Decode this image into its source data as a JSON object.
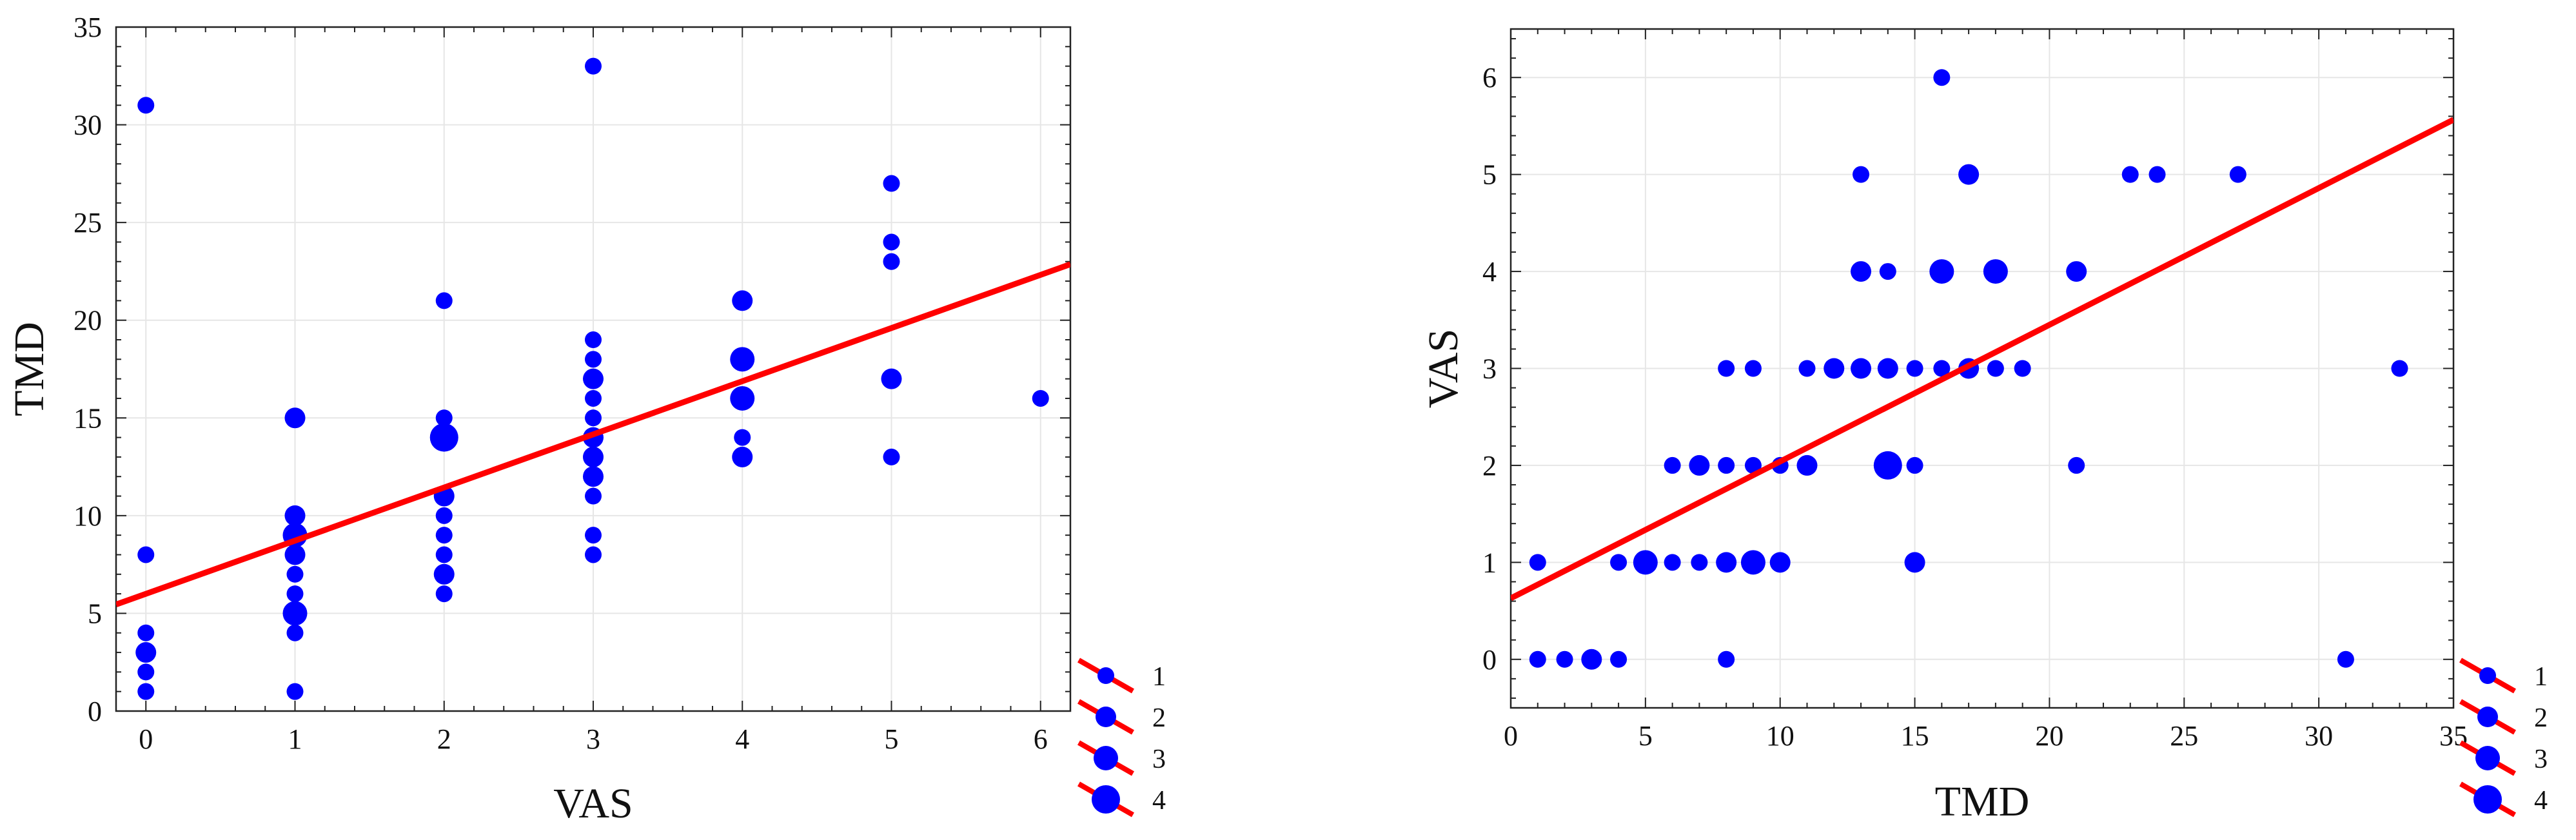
{
  "chart_data": [
    {
      "type": "scatter",
      "xlabel": "VAS",
      "ylabel": "TMD",
      "xlim": [
        -0.2,
        6.2
      ],
      "ylim": [
        0,
        35
      ],
      "xticks": [
        0,
        1,
        2,
        3,
        4,
        5,
        6
      ],
      "yticks": [
        0,
        5,
        10,
        15,
        20,
        25,
        30,
        35
      ],
      "grid": true,
      "point_color": "#0000ff",
      "line_color": "#ff0000",
      "fit_line": {
        "intercept": 6.0,
        "slope": 2.72
      },
      "points": [
        {
          "x": 0,
          "y": 31,
          "n": 1
        },
        {
          "x": 0,
          "y": 8,
          "n": 1
        },
        {
          "x": 0,
          "y": 4,
          "n": 1
        },
        {
          "x": 0,
          "y": 3,
          "n": 2
        },
        {
          "x": 0,
          "y": 2,
          "n": 1
        },
        {
          "x": 0,
          "y": 1,
          "n": 1
        },
        {
          "x": 1,
          "y": 15,
          "n": 2
        },
        {
          "x": 1,
          "y": 10,
          "n": 2
        },
        {
          "x": 1,
          "y": 9,
          "n": 3
        },
        {
          "x": 1,
          "y": 8,
          "n": 2
        },
        {
          "x": 1,
          "y": 7,
          "n": 1
        },
        {
          "x": 1,
          "y": 6,
          "n": 1
        },
        {
          "x": 1,
          "y": 5,
          "n": 3
        },
        {
          "x": 1,
          "y": 4,
          "n": 1
        },
        {
          "x": 1,
          "y": 1,
          "n": 1
        },
        {
          "x": 2,
          "y": 21,
          "n": 1
        },
        {
          "x": 2,
          "y": 15,
          "n": 1
        },
        {
          "x": 2,
          "y": 14,
          "n": 4
        },
        {
          "x": 2,
          "y": 11,
          "n": 2
        },
        {
          "x": 2,
          "y": 10,
          "n": 1
        },
        {
          "x": 2,
          "y": 9,
          "n": 1
        },
        {
          "x": 2,
          "y": 8,
          "n": 1
        },
        {
          "x": 2,
          "y": 7,
          "n": 2
        },
        {
          "x": 2,
          "y": 6,
          "n": 1
        },
        {
          "x": 3,
          "y": 33,
          "n": 1
        },
        {
          "x": 3,
          "y": 19,
          "n": 1
        },
        {
          "x": 3,
          "y": 18,
          "n": 1
        },
        {
          "x": 3,
          "y": 17,
          "n": 2
        },
        {
          "x": 3,
          "y": 16,
          "n": 1
        },
        {
          "x": 3,
          "y": 15,
          "n": 1
        },
        {
          "x": 3,
          "y": 14,
          "n": 2
        },
        {
          "x": 3,
          "y": 13,
          "n": 2
        },
        {
          "x": 3,
          "y": 12,
          "n": 2
        },
        {
          "x": 3,
          "y": 11,
          "n": 1
        },
        {
          "x": 3,
          "y": 9,
          "n": 1
        },
        {
          "x": 3,
          "y": 8,
          "n": 1
        },
        {
          "x": 4,
          "y": 21,
          "n": 2
        },
        {
          "x": 4,
          "y": 18,
          "n": 3
        },
        {
          "x": 4,
          "y": 16,
          "n": 3
        },
        {
          "x": 4,
          "y": 14,
          "n": 1
        },
        {
          "x": 4,
          "y": 13,
          "n": 2
        },
        {
          "x": 5,
          "y": 27,
          "n": 1
        },
        {
          "x": 5,
          "y": 24,
          "n": 1
        },
        {
          "x": 5,
          "y": 23,
          "n": 1
        },
        {
          "x": 5,
          "y": 17,
          "n": 2
        },
        {
          "x": 5,
          "y": 13,
          "n": 1
        },
        {
          "x": 6,
          "y": 16,
          "n": 1
        }
      ],
      "legend": {
        "placement": "bottom-right-outside",
        "entries": [
          "1",
          "2",
          "3",
          "4"
        ]
      }
    },
    {
      "type": "scatter",
      "xlabel": "TMD",
      "ylabel": "VAS",
      "xlim": [
        0,
        35
      ],
      "ylim": [
        -0.5,
        6.5
      ],
      "xticks": [
        0,
        5,
        10,
        15,
        20,
        25,
        30,
        35
      ],
      "yticks": [
        0,
        1,
        2,
        3,
        4,
        5,
        6
      ],
      "grid": true,
      "point_color": "#0000ff",
      "line_color": "#ff0000",
      "fit_line": {
        "intercept": 0.63,
        "slope": 0.141
      },
      "points": [
        {
          "x": 1,
          "y": 0,
          "n": 1
        },
        {
          "x": 2,
          "y": 0,
          "n": 1
        },
        {
          "x": 3,
          "y": 0,
          "n": 2
        },
        {
          "x": 4,
          "y": 0,
          "n": 1
        },
        {
          "x": 8,
          "y": 0,
          "n": 1
        },
        {
          "x": 31,
          "y": 0,
          "n": 1
        },
        {
          "x": 1,
          "y": 1,
          "n": 1
        },
        {
          "x": 4,
          "y": 1,
          "n": 1
        },
        {
          "x": 5,
          "y": 1,
          "n": 3
        },
        {
          "x": 6,
          "y": 1,
          "n": 1
        },
        {
          "x": 7,
          "y": 1,
          "n": 1
        },
        {
          "x": 8,
          "y": 1,
          "n": 2
        },
        {
          "x": 9,
          "y": 1,
          "n": 3
        },
        {
          "x": 10,
          "y": 1,
          "n": 2
        },
        {
          "x": 15,
          "y": 1,
          "n": 2
        },
        {
          "x": 6,
          "y": 2,
          "n": 1
        },
        {
          "x": 7,
          "y": 2,
          "n": 2
        },
        {
          "x": 8,
          "y": 2,
          "n": 1
        },
        {
          "x": 9,
          "y": 2,
          "n": 1
        },
        {
          "x": 10,
          "y": 2,
          "n": 1
        },
        {
          "x": 11,
          "y": 2,
          "n": 2
        },
        {
          "x": 14,
          "y": 2,
          "n": 4
        },
        {
          "x": 15,
          "y": 2,
          "n": 1
        },
        {
          "x": 21,
          "y": 2,
          "n": 1
        },
        {
          "x": 8,
          "y": 3,
          "n": 1
        },
        {
          "x": 9,
          "y": 3,
          "n": 1
        },
        {
          "x": 11,
          "y": 3,
          "n": 1
        },
        {
          "x": 12,
          "y": 3,
          "n": 2
        },
        {
          "x": 13,
          "y": 3,
          "n": 2
        },
        {
          "x": 14,
          "y": 3,
          "n": 2
        },
        {
          "x": 15,
          "y": 3,
          "n": 1
        },
        {
          "x": 16,
          "y": 3,
          "n": 1
        },
        {
          "x": 17,
          "y": 3,
          "n": 2
        },
        {
          "x": 18,
          "y": 3,
          "n": 1
        },
        {
          "x": 19,
          "y": 3,
          "n": 1
        },
        {
          "x": 33,
          "y": 3,
          "n": 1
        },
        {
          "x": 13,
          "y": 4,
          "n": 2
        },
        {
          "x": 14,
          "y": 4,
          "n": 1
        },
        {
          "x": 16,
          "y": 4,
          "n": 3
        },
        {
          "x": 18,
          "y": 4,
          "n": 3
        },
        {
          "x": 21,
          "y": 4,
          "n": 2
        },
        {
          "x": 13,
          "y": 5,
          "n": 1
        },
        {
          "x": 17,
          "y": 5,
          "n": 2
        },
        {
          "x": 23,
          "y": 5,
          "n": 1
        },
        {
          "x": 24,
          "y": 5,
          "n": 1
        },
        {
          "x": 27,
          "y": 5,
          "n": 1
        },
        {
          "x": 16,
          "y": 6,
          "n": 1
        }
      ],
      "legend": {
        "placement": "bottom-right-outside",
        "entries": [
          "1",
          "2",
          "3",
          "4"
        ]
      }
    }
  ]
}
